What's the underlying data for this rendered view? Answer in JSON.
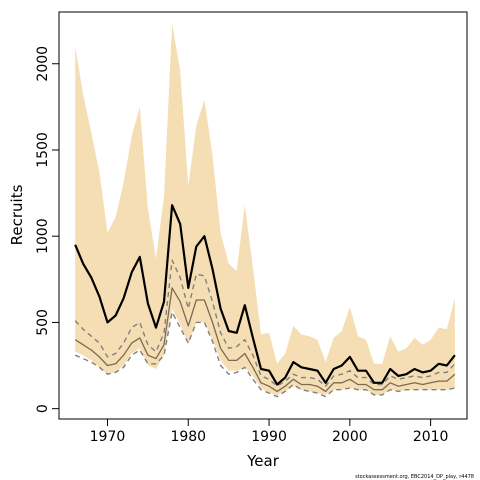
{
  "chart_data": {
    "type": "line",
    "title": "",
    "xlabel": "Year",
    "ylabel": "Recruits",
    "xlim": [
      1964,
      2014.5
    ],
    "ylim": [
      -60,
      2300
    ],
    "xticks": [
      1970,
      1980,
      1990,
      2000,
      2010
    ],
    "yticks": [
      0,
      500,
      1000,
      1500,
      2000
    ],
    "grid": false,
    "legend": "none",
    "colors": {
      "band": "#f5deb3",
      "median": "#000000",
      "quantile": "#808080",
      "inner": "#7a6a55"
    },
    "x": [
      1966,
      1967,
      1968,
      1969,
      1970,
      1971,
      1972,
      1973,
      1974,
      1975,
      1976,
      1977,
      1978,
      1979,
      1980,
      1981,
      1982,
      1983,
      1984,
      1985,
      1986,
      1987,
      1988,
      1989,
      1990,
      1991,
      1992,
      1993,
      1994,
      1995,
      1996,
      1997,
      1998,
      1999,
      2000,
      2001,
      2002,
      2003,
      2004,
      2005,
      2006,
      2007,
      2008,
      2009,
      2010,
      2011,
      2012,
      2013
    ],
    "series": [
      {
        "role": "band-upper",
        "values": [
          2100,
          1820,
          1600,
          1370,
          1020,
          1110,
          1310,
          1580,
          1750,
          1160,
          870,
          1230,
          2230,
          1960,
          1290,
          1640,
          1790,
          1470,
          1020,
          840,
          800,
          1180,
          820,
          430,
          440,
          260,
          320,
          480,
          430,
          420,
          400,
          270,
          410,
          450,
          590,
          420,
          400,
          260,
          260,
          420,
          330,
          350,
          410,
          370,
          400,
          470,
          460,
          640
        ]
      },
      {
        "role": "band-lower",
        "values": [
          330,
          310,
          280,
          240,
          200,
          210,
          250,
          320,
          350,
          250,
          230,
          310,
          580,
          490,
          370,
          500,
          500,
          400,
          280,
          220,
          220,
          240,
          190,
          120,
          90,
          80,
          100,
          130,
          110,
          100,
          90,
          80,
          110,
          110,
          120,
          110,
          110,
          80,
          80,
          110,
          100,
          110,
          110,
          110,
          110,
          110,
          110,
          120
        ]
      },
      {
        "role": "upper-quantile",
        "values": [
          510,
          460,
          420,
          380,
          300,
          320,
          380,
          470,
          500,
          370,
          330,
          440,
          860,
          760,
          580,
          780,
          770,
          620,
          440,
          350,
          360,
          400,
          310,
          190,
          170,
          130,
          160,
          200,
          180,
          180,
          170,
          130,
          190,
          200,
          220,
          180,
          180,
          140,
          140,
          190,
          170,
          180,
          190,
          180,
          190,
          210,
          210,
          260
        ]
      },
      {
        "role": "lower-quantile",
        "values": [
          310,
          290,
          270,
          240,
          200,
          210,
          240,
          310,
          340,
          260,
          260,
          310,
          560,
          470,
          380,
          500,
          500,
          390,
          250,
          200,
          210,
          240,
          170,
          110,
          90,
          70,
          100,
          140,
          110,
          100,
          90,
          70,
          110,
          110,
          120,
          110,
          110,
          80,
          80,
          110,
          100,
          110,
          110,
          110,
          110,
          110,
          110,
          120
        ]
      },
      {
        "role": "inner-upper",
        "values": [
          400,
          370,
          340,
          300,
          250,
          260,
          310,
          380,
          410,
          310,
          290,
          370,
          700,
          620,
          480,
          630,
          630,
          500,
          350,
          280,
          280,
          320,
          240,
          150,
          130,
          100,
          130,
          170,
          140,
          140,
          130,
          100,
          150,
          150,
          170,
          140,
          140,
          110,
          110,
          150,
          130,
          140,
          150,
          140,
          150,
          160,
          160,
          200
        ]
      },
      {
        "role": "median",
        "values": [
          950,
          840,
          760,
          650,
          500,
          540,
          640,
          790,
          880,
          610,
          470,
          620,
          1180,
          1070,
          700,
          940,
          1000,
          810,
          580,
          450,
          440,
          600,
          410,
          230,
          220,
          140,
          180,
          270,
          240,
          230,
          220,
          150,
          230,
          250,
          300,
          220,
          220,
          150,
          150,
          230,
          190,
          200,
          230,
          210,
          220,
          260,
          250,
          310
        ]
      }
    ]
  },
  "credit": "stockassessment.org, EBC2014_DP_play, r4478"
}
